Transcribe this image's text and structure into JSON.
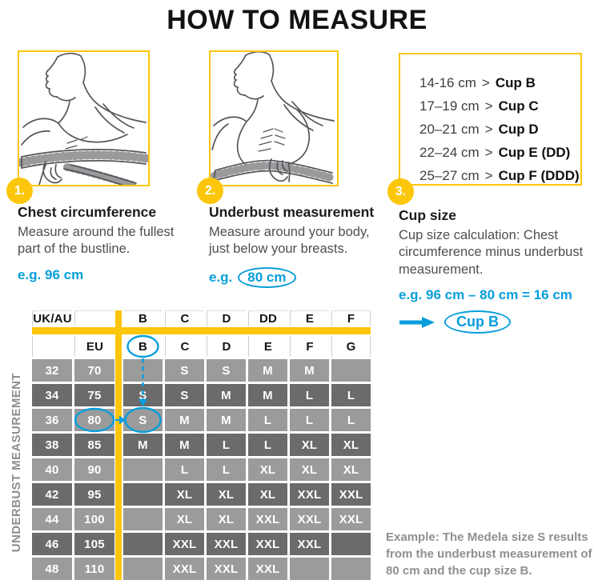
{
  "title": "HOW TO MEASURE",
  "colors": {
    "yellow": "#FCC60A",
    "teal": "#089EDC",
    "row_dark": "#6B6B6B",
    "row_light": "#9B9B9B",
    "text_gray": "#8F8F8F"
  },
  "steps": [
    {
      "number": "1.",
      "heading": "Chest circumference",
      "body_lines": [
        "Measure around the fullest",
        "part of the bustline."
      ],
      "example": "e.g. 96 cm"
    },
    {
      "number": "2.",
      "heading": "Underbust measurement",
      "body_lines": [
        "Measure around your body,",
        "just below your breasts."
      ],
      "example_prefix": "e.g.",
      "example_circled": "80 cm"
    },
    {
      "number": "3.",
      "heading": "Cup size",
      "body_lines": [
        "Cup size calculation: Chest",
        "circumference minus underbust",
        "measurement."
      ],
      "example": "e.g. 96 cm – 80 cm = 16 cm",
      "result_circled": "Cup B"
    }
  ],
  "cup_chart": {
    "separator": ">",
    "items": [
      {
        "range": "14-16 cm",
        "cup": "Cup B"
      },
      {
        "range": "17–19 cm",
        "cup": "Cup C"
      },
      {
        "range": "20–21 cm",
        "cup": "Cup D"
      },
      {
        "range": "22–24 cm",
        "cup": "Cup E (DD)"
      },
      {
        "range": "25–27 cm",
        "cup": "Cup F (DDD)"
      }
    ]
  },
  "size_table": {
    "side_label": "UNDERBUST MEASUREMENT",
    "header_row1": [
      "UK/AU",
      "",
      "B",
      "C",
      "D",
      "DD",
      "E",
      "F"
    ],
    "header_row2": [
      "",
      "EU",
      "B",
      "C",
      "D",
      "E",
      "F",
      "G"
    ],
    "rows": [
      {
        "ukau": "32",
        "eu": "70",
        "sizes": [
          "",
          "S",
          "S",
          "M",
          "M",
          ""
        ]
      },
      {
        "ukau": "34",
        "eu": "75",
        "sizes": [
          "S",
          "S",
          "M",
          "M",
          "L",
          "L"
        ]
      },
      {
        "ukau": "36",
        "eu": "80",
        "sizes": [
          "S",
          "M",
          "M",
          "L",
          "L",
          "L"
        ]
      },
      {
        "ukau": "38",
        "eu": "85",
        "sizes": [
          "M",
          "M",
          "L",
          "L",
          "XL",
          "XL"
        ]
      },
      {
        "ukau": "40",
        "eu": "90",
        "sizes": [
          "",
          "L",
          "L",
          "XL",
          "XL",
          "XL"
        ]
      },
      {
        "ukau": "42",
        "eu": "95",
        "sizes": [
          "",
          "XL",
          "XL",
          "XL",
          "XXL",
          "XXL"
        ]
      },
      {
        "ukau": "44",
        "eu": "100",
        "sizes": [
          "",
          "XL",
          "XL",
          "XXL",
          "XXL",
          "XXL"
        ]
      },
      {
        "ukau": "46",
        "eu": "105",
        "sizes": [
          "",
          "XXL",
          "XXL",
          "XXL",
          "XXL",
          ""
        ]
      },
      {
        "ukau": "48",
        "eu": "110",
        "sizes": [
          "",
          "XXL",
          "XXL",
          "XXL",
          "",
          ""
        ]
      }
    ],
    "annotations": {
      "circled_header_cup": "B",
      "circled_eu_value": "80",
      "circled_size_value": "S"
    }
  },
  "footnote_lines": [
    "Example: The Medela size S results",
    "from the underbust measurement of",
    "80 cm and the cup size B."
  ]
}
